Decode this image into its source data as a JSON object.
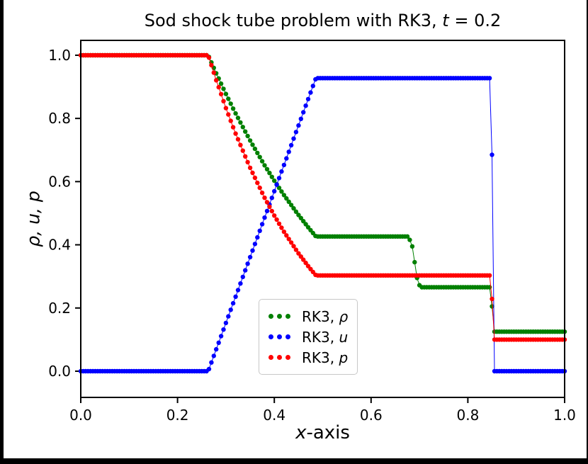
{
  "frame": {
    "bg": "#000000",
    "figure_bg": "#ffffff"
  },
  "chart_data": {
    "type": "scatter",
    "title": {
      "text": "Sod shock tube problem with RK3, ",
      "math_var": "t",
      "math_rest": " = 0.2"
    },
    "xlabel": {
      "math_var": "x",
      "rest": "-axis"
    },
    "ylabel": "ρ, u, p",
    "time": "0.2",
    "axes": {
      "xlim": [
        0,
        1
      ],
      "ylim": [
        -0.083,
        1.047
      ],
      "grid": false,
      "xticks": {
        "values": [
          0,
          0.2,
          0.4,
          0.6,
          0.8,
          1.0
        ],
        "labels": [
          "0.0",
          "0.2",
          "0.4",
          "0.6",
          "0.8",
          "1.0"
        ]
      },
      "yticks": {
        "values": [
          0,
          0.2,
          0.4,
          0.6,
          0.8,
          1.0
        ],
        "labels": [
          "0.0",
          "0.2",
          "0.4",
          "0.6",
          "0.8",
          "1.0"
        ]
      }
    },
    "legend": {
      "position": "lower-center",
      "entries": [
        {
          "label_prefix": "RK3, ",
          "symbol": "ρ",
          "color": "#008000"
        },
        {
          "label_prefix": "RK3, ",
          "symbol": "u",
          "color": "#0000ff"
        },
        {
          "label_prefix": "RK3, ",
          "symbol": "p",
          "color": "#ff0000"
        }
      ]
    },
    "sample_step": 0.005,
    "marker_radius": 3.2,
    "series": [
      {
        "id": "rho",
        "name": "RK3, ρ",
        "color": "#008000",
        "breakpoints": [
          [
            0.0,
            1.0
          ],
          [
            0.2634,
            1.0
          ],
          [
            0.28,
            0.9428
          ],
          [
            0.3,
            0.8774
          ],
          [
            0.32,
            0.8158
          ],
          [
            0.35,
            0.7299
          ],
          [
            0.38,
            0.6515
          ],
          [
            0.4,
            0.6029
          ],
          [
            0.42,
            0.5574
          ],
          [
            0.45,
            0.4943
          ],
          [
            0.47,
            0.4555
          ],
          [
            0.4859,
            0.4263
          ],
          [
            0.676,
            0.4263
          ],
          [
            0.684,
            0.405
          ],
          [
            0.69,
            0.345
          ],
          [
            0.696,
            0.285
          ],
          [
            0.702,
            0.2656
          ],
          [
            0.8475,
            0.2656
          ],
          [
            0.85,
            0.205
          ],
          [
            0.8525,
            0.125
          ],
          [
            1.0,
            0.125
          ]
        ]
      },
      {
        "id": "u",
        "name": "RK3, u",
        "color": "#0000ff",
        "breakpoints": [
          [
            0.0,
            0.0
          ],
          [
            0.2634,
            0.0
          ],
          [
            0.4859,
            0.9274
          ],
          [
            0.8475,
            0.9274
          ],
          [
            0.85,
            0.685
          ],
          [
            0.8525,
            0.0
          ],
          [
            1.0,
            0.0
          ]
        ]
      },
      {
        "id": "p",
        "name": "RK3, p",
        "color": "#ff0000",
        "breakpoints": [
          [
            0.0,
            1.0
          ],
          [
            0.2634,
            1.0
          ],
          [
            0.28,
            0.9208
          ],
          [
            0.3,
            0.8327
          ],
          [
            0.32,
            0.752
          ],
          [
            0.35,
            0.6436
          ],
          [
            0.38,
            0.5488
          ],
          [
            0.4,
            0.4925
          ],
          [
            0.42,
            0.4412
          ],
          [
            0.45,
            0.3729
          ],
          [
            0.47,
            0.3326
          ],
          [
            0.4859,
            0.3031
          ],
          [
            0.8475,
            0.3031
          ],
          [
            0.85,
            0.2286
          ],
          [
            0.8525,
            0.1
          ],
          [
            1.0,
            0.1
          ]
        ]
      }
    ]
  }
}
